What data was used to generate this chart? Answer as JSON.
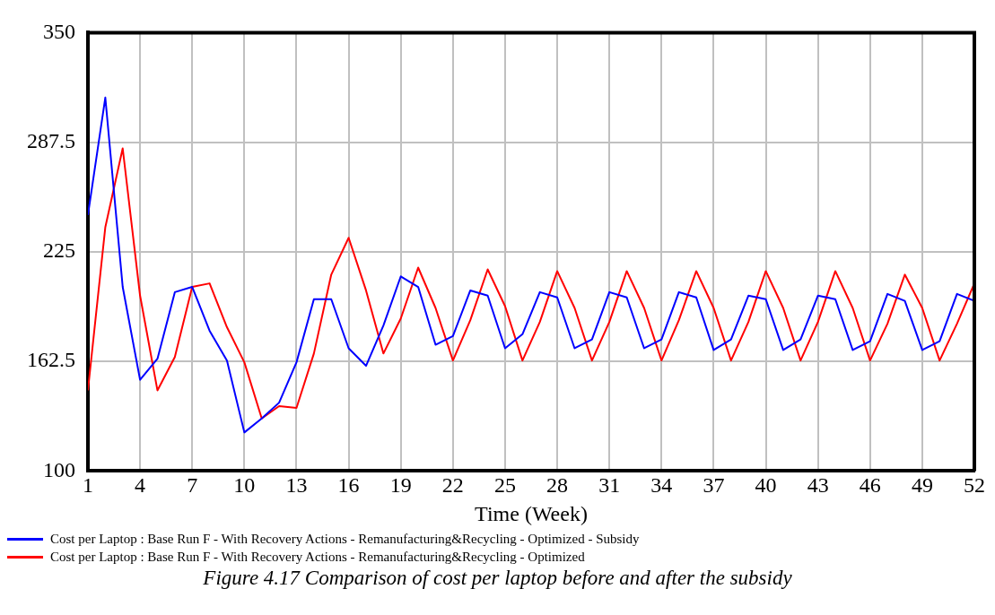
{
  "chart_data": {
    "type": "line",
    "xlabel": "Time (Week)",
    "x": [
      1,
      2,
      3,
      4,
      5,
      6,
      7,
      8,
      9,
      10,
      11,
      12,
      13,
      14,
      15,
      16,
      17,
      18,
      19,
      20,
      21,
      22,
      23,
      24,
      25,
      26,
      27,
      28,
      29,
      30,
      31,
      32,
      33,
      34,
      35,
      36,
      37,
      38,
      39,
      40,
      41,
      42,
      43,
      44,
      45,
      46,
      47,
      48,
      49,
      50,
      51,
      52
    ],
    "series": [
      {
        "name": "Cost per Laptop : Base Run F - With Recovery Actions - Remanufacturing&Recycling - Optimized - Subsidy",
        "color": "#0000ff",
        "values": [
          246,
          313,
          205,
          152,
          164,
          202,
          205,
          180,
          163,
          122,
          130,
          139,
          162,
          198,
          198,
          170,
          160,
          183,
          211,
          205,
          172,
          177,
          203,
          200,
          170,
          178,
          202,
          199,
          170,
          175,
          202,
          199,
          170,
          175,
          202,
          199,
          169,
          175,
          200,
          198,
          169,
          175,
          200,
          198,
          169,
          174,
          201,
          197,
          169,
          174,
          201,
          197
        ]
      },
      {
        "name": "Cost per Laptop : Base Run F - With Recovery Actions - Remanufacturing&Recycling - Optimized",
        "color": "#ff0000",
        "values": [
          146,
          239,
          284,
          200,
          146,
          165,
          205,
          207,
          182,
          162,
          130,
          137,
          136,
          167,
          212,
          233,
          203,
          167,
          187,
          216,
          193,
          163,
          186,
          215,
          194,
          163,
          185,
          214,
          193,
          163,
          185,
          214,
          193,
          163,
          186,
          214,
          193,
          163,
          185,
          214,
          193,
          163,
          185,
          214,
          193,
          163,
          184,
          212,
          193,
          163,
          184,
          207
        ]
      }
    ],
    "xlim": [
      1,
      52
    ],
    "xticks": [
      1,
      4,
      7,
      10,
      13,
      16,
      19,
      22,
      25,
      28,
      31,
      34,
      37,
      40,
      43,
      46,
      49,
      52
    ],
    "ylim": [
      100,
      350
    ],
    "yticks": [
      100,
      162.5,
      225,
      287.5,
      350
    ],
    "grid": true,
    "legend": "bottom",
    "line_style": "solid",
    "annotations": [
      "Figure 4.17 Comparison of cost per laptop before and after the subsidy"
    ]
  }
}
